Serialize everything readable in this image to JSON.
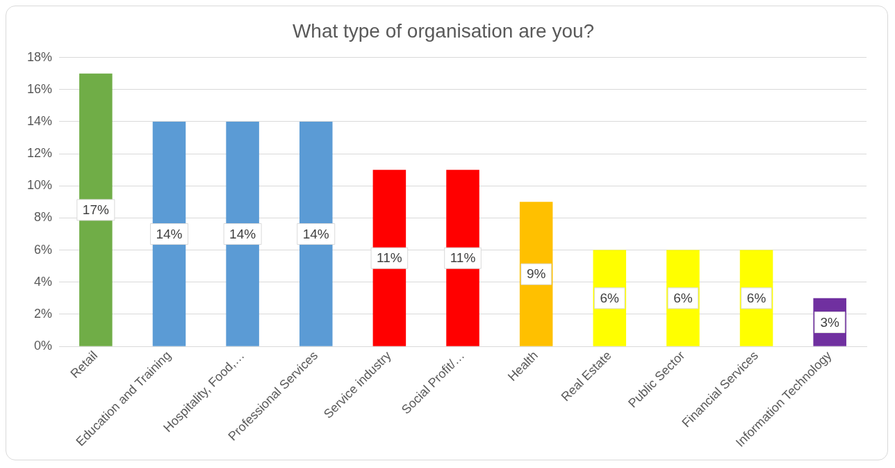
{
  "chart_data": {
    "type": "bar",
    "title": "What type of organisation are you?",
    "categories": [
      "Retail",
      "Education and Training",
      "Hospitality, Food,…",
      "Professional Services",
      "Service industry",
      "Social Profit/…",
      "Health",
      "Real Estate",
      "Public Sector",
      "Financial Services",
      "Information Technology"
    ],
    "values": [
      17,
      14,
      14,
      14,
      11,
      11,
      9,
      6,
      6,
      6,
      3
    ],
    "colors": [
      "#70ad47",
      "#5b9bd5",
      "#5b9bd5",
      "#5b9bd5",
      "#ff0000",
      "#ff0000",
      "#ffc000",
      "#ffff00",
      "#ffff00",
      "#ffff00",
      "#7030a0"
    ],
    "value_labels": [
      "17%",
      "14%",
      "14%",
      "14%",
      "11%",
      "11%",
      "9%",
      "6%",
      "6%",
      "6%",
      "3%"
    ],
    "ylim": [
      0,
      18
    ],
    "yticks": [
      {
        "value": 0,
        "label": "0%"
      },
      {
        "value": 2,
        "label": "2%"
      },
      {
        "value": 4,
        "label": "4%"
      },
      {
        "value": 6,
        "label": "6%"
      },
      {
        "value": 8,
        "label": "8%"
      },
      {
        "value": 10,
        "label": "10%"
      },
      {
        "value": 12,
        "label": "12%"
      },
      {
        "value": 14,
        "label": "14%"
      },
      {
        "value": 16,
        "label": "16%"
      },
      {
        "value": 18,
        "label": "18%"
      }
    ],
    "grid": "y",
    "legend": false
  }
}
